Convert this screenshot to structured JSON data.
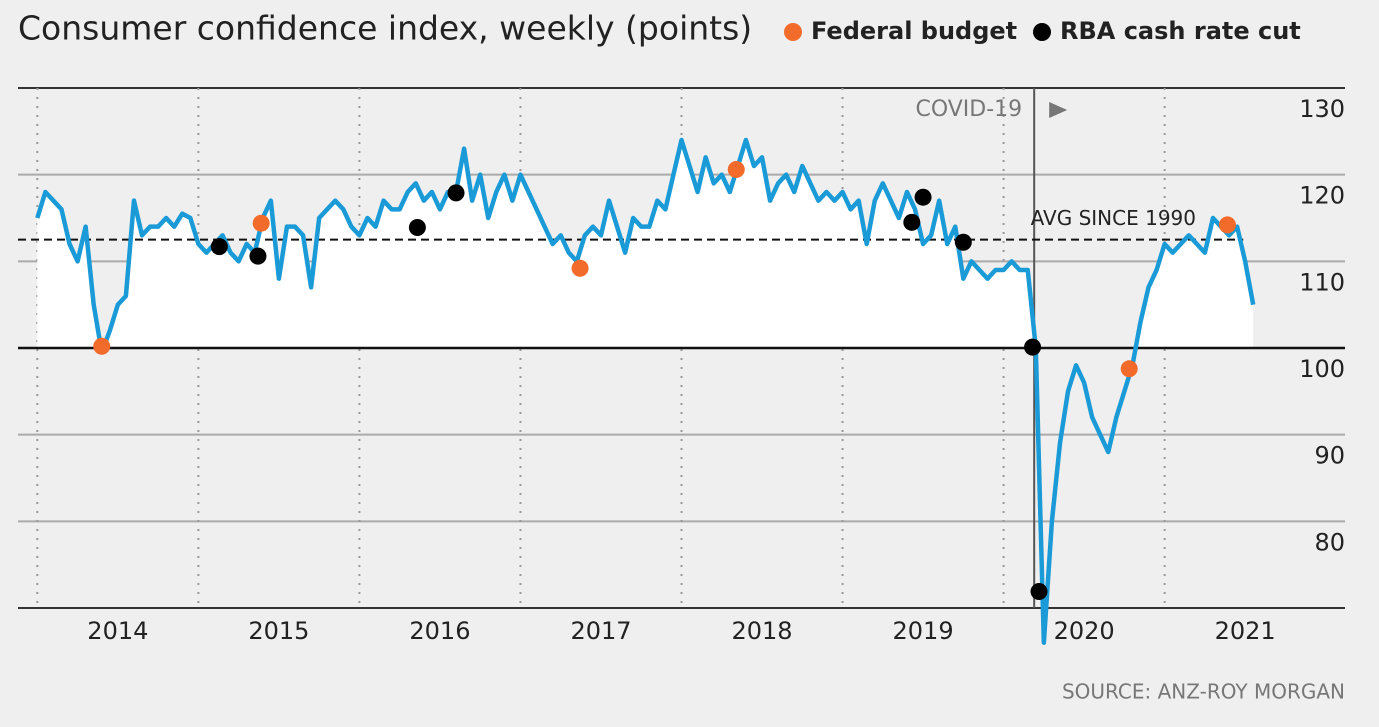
{
  "chart_data": {
    "type": "line",
    "title": "Consumer confidence index, weekly (points)",
    "source": "SOURCE: ANZ-ROY MORGAN",
    "color": "#1a9ad6",
    "x": [
      2014.0,
      2014.05,
      2014.1,
      2014.15,
      2014.2,
      2014.25,
      2014.3,
      2014.35,
      2014.4,
      2014.45,
      2014.5,
      2014.55,
      2014.6,
      2014.65,
      2014.7,
      2014.75,
      2014.8,
      2014.85,
      2014.9,
      2014.95,
      2015.0,
      2015.05,
      2015.1,
      2015.15,
      2015.2,
      2015.25,
      2015.3,
      2015.35,
      2015.4,
      2015.45,
      2015.5,
      2015.55,
      2015.6,
      2015.65,
      2015.7,
      2015.75,
      2015.8,
      2015.85,
      2015.9,
      2015.95,
      2016.0,
      2016.05,
      2016.1,
      2016.15,
      2016.2,
      2016.25,
      2016.3,
      2016.35,
      2016.4,
      2016.45,
      2016.5,
      2016.55,
      2016.6,
      2016.65,
      2016.7,
      2016.75,
      2016.8,
      2016.85,
      2016.9,
      2016.95,
      2017.0,
      2017.05,
      2017.1,
      2017.15,
      2017.2,
      2017.25,
      2017.3,
      2017.35,
      2017.4,
      2017.45,
      2017.5,
      2017.55,
      2017.6,
      2017.65,
      2017.7,
      2017.75,
      2017.8,
      2017.85,
      2017.9,
      2017.95,
      2018.0,
      2018.05,
      2018.1,
      2018.15,
      2018.2,
      2018.25,
      2018.3,
      2018.35,
      2018.4,
      2018.45,
      2018.5,
      2018.55,
      2018.6,
      2018.65,
      2018.7,
      2018.75,
      2018.8,
      2018.85,
      2018.9,
      2018.95,
      2019.0,
      2019.05,
      2019.1,
      2019.15,
      2019.2,
      2019.25,
      2019.3,
      2019.35,
      2019.4,
      2019.45,
      2019.5,
      2019.55,
      2019.6,
      2019.65,
      2019.7,
      2019.75,
      2019.8,
      2019.85,
      2019.9,
      2019.95,
      2020.0,
      2020.05,
      2020.1,
      2020.15,
      2020.2,
      2020.25,
      2020.3,
      2020.35,
      2020.4,
      2020.45,
      2020.5,
      2020.55,
      2020.6,
      2020.65,
      2020.7,
      2020.75,
      2020.8,
      2020.85,
      2020.9,
      2020.95,
      2021.0,
      2021.05,
      2021.1,
      2021.15,
      2021.2,
      2021.25,
      2021.3,
      2021.35,
      2021.4,
      2021.45,
      2021.5,
      2021.55
    ],
    "values": [
      115,
      118,
      117,
      116,
      112,
      110,
      114,
      105,
      99.5,
      102,
      105,
      106,
      117,
      113,
      114,
      114,
      115,
      114,
      115.5,
      115,
      112,
      111,
      112,
      113,
      111,
      110,
      112,
      111,
      115,
      117,
      108,
      114,
      114,
      113,
      107,
      115,
      116,
      117,
      116,
      114,
      113,
      115,
      114,
      117,
      116,
      116,
      118,
      119,
      117,
      118,
      116,
      118,
      118,
      123,
      117,
      120,
      115,
      118,
      120,
      117,
      120,
      118,
      116,
      114,
      112,
      113,
      111,
      110,
      113,
      114,
      113,
      117,
      114,
      111,
      115,
      114,
      114,
      117,
      116,
      120,
      124,
      121,
      118,
      122,
      119,
      120,
      118,
      121,
      124,
      121,
      122,
      117,
      119,
      120,
      118,
      121,
      119,
      117,
      118,
      117,
      118,
      116,
      117,
      112,
      117,
      119,
      117,
      115,
      118,
      116,
      112,
      113,
      117,
      112,
      114,
      108,
      110,
      109,
      108,
      109,
      109,
      110,
      109,
      109,
      100,
      66,
      80,
      89,
      95,
      98,
      96,
      92,
      90,
      88,
      92,
      95,
      98,
      103,
      107,
      109,
      112,
      111,
      112,
      113,
      112,
      111,
      115,
      114,
      113,
      114,
      110,
      105
    ],
    "events": [
      {
        "name": "Federal budget",
        "color": "#f26b2a",
        "x": [
          2014.4,
          2015.39,
          2017.37,
          2018.34,
          2020.78,
          2021.39
        ],
        "values": [
          100.2,
          114.4,
          109.2,
          120.6,
          97.6,
          114.2
        ]
      },
      {
        "name": "RBA cash rate cut",
        "color": "#000000",
        "x": [
          2015.13,
          2015.37,
          2016.36,
          2016.6,
          2019.43,
          2019.5,
          2019.75,
          2020.18,
          2020.22
        ],
        "values": [
          111.7,
          110.6,
          113.9,
          117.9,
          114.5,
          117.4,
          112.2,
          100.1,
          71.9
        ]
      }
    ],
    "reference_line": {
      "label": "AVG SINCE 1990",
      "value": 112.5
    },
    "baseline": 100,
    "covid": {
      "label": "COVID-19",
      "x": 2020.19
    },
    "xlim": [
      2013.88,
      2022.12
    ],
    "xgrid": [
      2014,
      2015,
      2016,
      2017,
      2018,
      2019,
      2020,
      2021
    ],
    "xticks": [
      {
        "value": 2014.5,
        "label": "2014"
      },
      {
        "value": 2015.5,
        "label": "2015"
      },
      {
        "value": 2016.5,
        "label": "2016"
      },
      {
        "value": 2017.5,
        "label": "2017"
      },
      {
        "value": 2018.5,
        "label": "2018"
      },
      {
        "value": 2019.5,
        "label": "2019"
      },
      {
        "value": 2020.5,
        "label": "2020"
      },
      {
        "value": 2021.5,
        "label": "2021"
      }
    ],
    "ylim": [
      70,
      130
    ],
    "yticks": [
      80,
      90,
      100,
      110,
      120,
      130
    ],
    "grid": true
  }
}
